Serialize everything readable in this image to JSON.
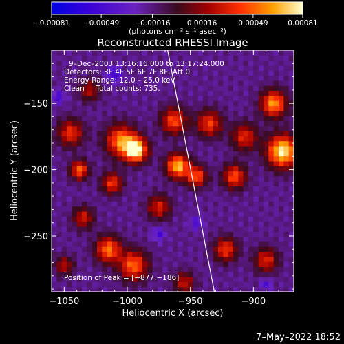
{
  "chart_data": {
    "type": "heatmap",
    "title": "Reconstructed RHESSI Image",
    "xlabel": "Heliocentric X (arcsec)",
    "ylabel": "Heliocentric Y (arcsec)",
    "xlim": [
      -1060,
      -868
    ],
    "ylim": [
      -292,
      -110
    ],
    "x_ticks": [
      {
        "value": -1050,
        "label": "−1050"
      },
      {
        "value": -1000,
        "label": "−1000"
      },
      {
        "value": -950,
        "label": "−950"
      },
      {
        "value": -900,
        "label": "−900"
      }
    ],
    "y_ticks": [
      {
        "value": -150,
        "label": "−150"
      },
      {
        "value": -200,
        "label": "−200"
      },
      {
        "value": -250,
        "label": "−250"
      }
    ],
    "colorbar": {
      "range": [
        -0.00081,
        0.00081
      ],
      "ticks": [
        {
          "value": -0.00081,
          "label": "−0.00081"
        },
        {
          "value": -0.00049,
          "label": "−0.00049"
        },
        {
          "value": -0.00016,
          "label": "−0.00016"
        },
        {
          "value": 0.00016,
          "label": "0.00016"
        },
        {
          "value": 0.00049,
          "label": "0.00049"
        },
        {
          "value": 0.00081,
          "label": "0.00081"
        }
      ],
      "unit_label": "(photons cm⁻² s⁻¹ asec⁻²)"
    },
    "annotations": [
      "9–Dec–2003 13:16:16.000 to 13:17:24.000",
      "Detectors: 3F 4F 5F 6F 7F 8F, Att 0",
      "Energy Range: 12.0 – 25.0 keV",
      "Clean     Total counts: 735."
    ],
    "peak_label": "Position of Peak = [−877,−186]",
    "limb_line": [
      [
        -968,
        -110
      ],
      [
        -931,
        -292
      ]
    ],
    "hot_spots": [
      {
        "x": -993,
        "y": -185,
        "v": 0.00081,
        "r": 9
      },
      {
        "x": -1005,
        "y": -178,
        "v": 0.00055,
        "r": 12
      },
      {
        "x": -877,
        "y": -186,
        "v": 0.00081,
        "r": 12
      },
      {
        "x": -884,
        "y": -150,
        "v": 0.0006,
        "r": 10
      },
      {
        "x": -960,
        "y": -197,
        "v": 0.0007,
        "r": 9
      },
      {
        "x": -963,
        "y": -163,
        "v": 0.00045,
        "r": 10
      },
      {
        "x": -1038,
        "y": -200,
        "v": 0.0005,
        "r": 7
      },
      {
        "x": -1045,
        "y": -172,
        "v": 0.00038,
        "r": 10
      },
      {
        "x": -1035,
        "y": -236,
        "v": 0.0003,
        "r": 8
      },
      {
        "x": -1015,
        "y": -260,
        "v": 0.00052,
        "r": 10
      },
      {
        "x": -995,
        "y": -272,
        "v": 0.0005,
        "r": 11
      },
      {
        "x": -975,
        "y": -228,
        "v": 0.00032,
        "r": 9
      },
      {
        "x": -945,
        "y": -205,
        "v": 0.00045,
        "r": 8
      },
      {
        "x": -935,
        "y": -165,
        "v": 0.0004,
        "r": 10
      },
      {
        "x": -915,
        "y": -205,
        "v": 0.00045,
        "r": 9
      },
      {
        "x": -907,
        "y": -175,
        "v": 0.00035,
        "r": 10
      },
      {
        "x": -922,
        "y": -260,
        "v": 0.0004,
        "r": 9
      },
      {
        "x": -890,
        "y": -268,
        "v": 0.00035,
        "r": 9
      },
      {
        "x": -1030,
        "y": -140,
        "v": 0.00022,
        "r": 8
      },
      {
        "x": -1012,
        "y": -210,
        "v": 0.0004,
        "r": 8
      },
      {
        "x": -955,
        "y": -285,
        "v": 0.00028,
        "r": 8
      },
      {
        "x": -1050,
        "y": -272,
        "v": 0.00025,
        "r": 7
      }
    ],
    "cold_spots": [
      {
        "x": -1010,
        "y": -128,
        "v": -0.00035,
        "r": 6
      },
      {
        "x": -1055,
        "y": -145,
        "v": -0.0003,
        "r": 5
      },
      {
        "x": -975,
        "y": -248,
        "v": -0.0003,
        "r": 5
      },
      {
        "x": -945,
        "y": -240,
        "v": -0.00028,
        "r": 5
      },
      {
        "x": -890,
        "y": -286,
        "v": -0.0003,
        "r": 4
      }
    ],
    "background_level": -0.00018
  },
  "footer": {
    "timestamp": "7–May–2022 18:52"
  }
}
